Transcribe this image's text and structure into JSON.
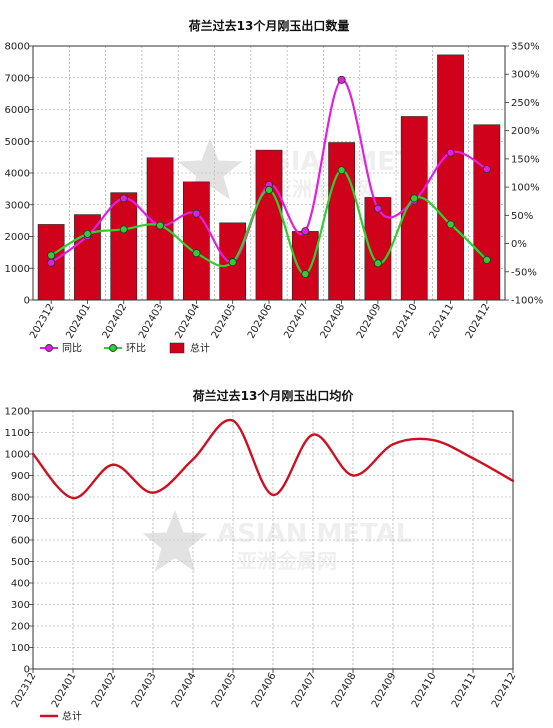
{
  "colors": {
    "bar": "#d0021b",
    "yoy": "#e020e0",
    "mom": "#33cc33",
    "line": "#cc1122",
    "grid": "#9a9a9a",
    "watermark": "#cccccc"
  },
  "watermark": {
    "text_en": "ASIAN METAL",
    "text_cn": "亚洲金属网",
    "logo": "star-logo"
  },
  "chart_data": [
    {
      "type": "bar",
      "title": "荷兰过去13个月刚玉出口数量",
      "categories": [
        "202312",
        "202401",
        "202402",
        "202403",
        "202404",
        "202405",
        "202406",
        "202407",
        "202408",
        "202409",
        "202410",
        "202411",
        "202412"
      ],
      "series": [
        {
          "name": "总计",
          "kind": "bar",
          "axis": "left",
          "values": [
            2380,
            2690,
            3380,
            4480,
            3720,
            2430,
            4720,
            2160,
            4960,
            3230,
            5780,
            7720,
            5520
          ]
        },
        {
          "name": "同比",
          "kind": "line",
          "axis": "right",
          "values": [
            -34,
            13,
            80,
            32,
            53,
            -32,
            104,
            22,
            290,
            62,
            76,
            161,
            132
          ]
        },
        {
          "name": "环比",
          "kind": "line",
          "axis": "right",
          "values": [
            -21,
            17,
            25,
            32,
            -17,
            -33,
            95,
            -54,
            130,
            -35,
            80,
            34,
            -29
          ]
        }
      ],
      "ylim": [
        0,
        8000
      ],
      "y_ticks": [
        "0",
        "1000",
        "2000",
        "3000",
        "4000",
        "5000",
        "6000",
        "7000",
        "8000"
      ],
      "y2lim": [
        -100,
        350
      ],
      "y2_ticks": [
        "-100%",
        "-50%",
        "0%",
        "50%",
        "100%",
        "150%",
        "200%",
        "250%",
        "300%",
        "350%"
      ],
      "grid": true,
      "legend": "bottom-left",
      "legend_items": [
        {
          "label": "同比",
          "kind": "line-marker",
          "color": "#e020e0"
        },
        {
          "label": "环比",
          "kind": "line-marker",
          "color": "#33cc33"
        },
        {
          "label": "总计",
          "kind": "bar",
          "color": "#d0021b"
        }
      ]
    },
    {
      "type": "line",
      "title": "荷兰过去13个月刚玉出口均价",
      "categories": [
        "202312",
        "202401",
        "202402",
        "202403",
        "202404",
        "202405",
        "202406",
        "202407",
        "202408",
        "202409",
        "202410",
        "202411",
        "202412"
      ],
      "series": [
        {
          "name": "总计",
          "values": [
            1000,
            795,
            950,
            820,
            975,
            1155,
            810,
            1090,
            900,
            1045,
            1065,
            980,
            875
          ]
        }
      ],
      "ylim": [
        0,
        1200
      ],
      "y_ticks": [
        "0",
        "100",
        "200",
        "300",
        "400",
        "500",
        "600",
        "700",
        "800",
        "900",
        "1000",
        "1100",
        "1200"
      ],
      "grid": true,
      "legend": "bottom-left",
      "legend_items": [
        {
          "label": "总计",
          "kind": "line",
          "color": "#cc1122"
        }
      ]
    }
  ]
}
